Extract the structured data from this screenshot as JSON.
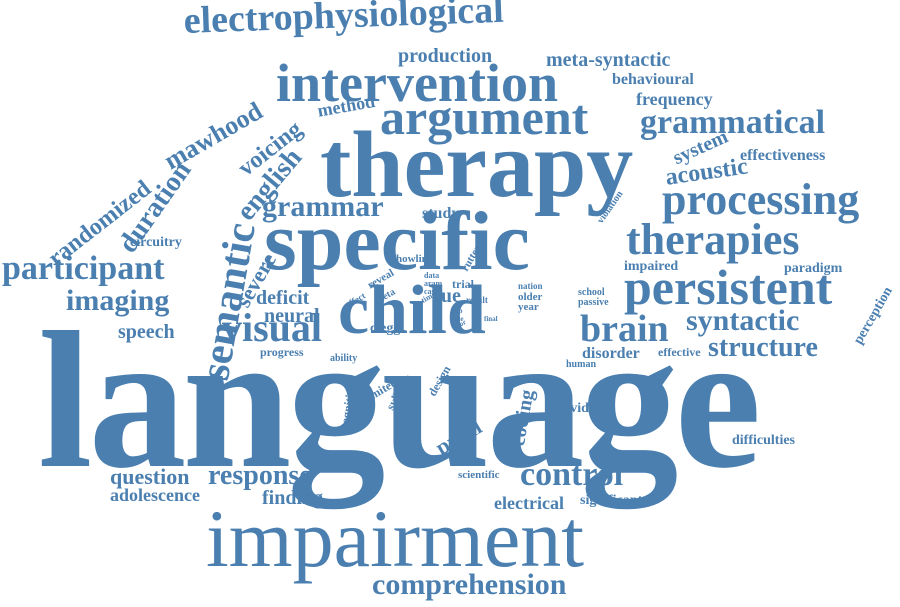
{
  "colors": {
    "word": "#4a7fb0",
    "background": "#ffffff"
  },
  "words": [
    "language",
    "impairment",
    "therapy",
    "specific",
    "child",
    "intervention",
    "argument",
    "electrophysiological",
    "processing",
    "persistent",
    "therapies",
    "grammatical",
    "semantic",
    "participant",
    "imaging",
    "visual",
    "brain",
    "syntactic",
    "structure",
    "control",
    "response",
    "comprehension",
    "grammar",
    "english",
    "randomized",
    "duration",
    "mawhood",
    "voicing",
    "production",
    "meta-syntactic",
    "behavioural",
    "frequency",
    "method",
    "acoustic",
    "system",
    "effectiveness",
    "speech",
    "severe",
    "neural",
    "deficit",
    "question",
    "adolescence",
    "finding",
    "electrical",
    "significant",
    "pupil",
    "coding",
    "cue",
    "trial",
    "clegg",
    "disorder",
    "effective",
    "impaired",
    "paradigm",
    "perception",
    "study",
    "circuitry",
    "progress",
    "ability",
    "cognitive",
    "limited",
    "syllable",
    "design",
    "evidence",
    "difficulties",
    "scientific",
    "human",
    "older",
    "year",
    "school",
    "passive",
    "result",
    "howlin",
    "rutter",
    "violation",
    "reveal",
    "meta",
    "affect",
    "data",
    "aram",
    "case",
    "time",
    "nation",
    "exp",
    "role",
    "poor",
    "final"
  ]
}
